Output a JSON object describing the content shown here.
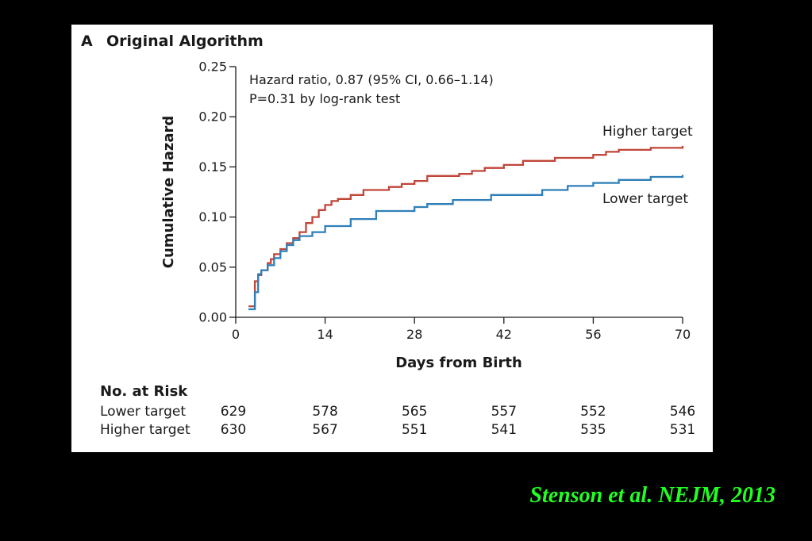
{
  "panel": {
    "letter": "A",
    "title": "Original Algorithm"
  },
  "chart_data": {
    "type": "line",
    "step": true,
    "xlabel": "Days from Birth",
    "ylabel": "Cumulative Hazard",
    "xlim": [
      0,
      70
    ],
    "ylim": [
      0,
      0.25
    ],
    "x_ticks": [
      0,
      14,
      28,
      42,
      56,
      70
    ],
    "y_ticks": [
      0.0,
      0.05,
      0.1,
      0.15,
      0.2,
      0.25
    ],
    "y_tick_labels": [
      "0.00",
      "0.05",
      "0.10",
      "0.15",
      "0.20",
      "0.25"
    ],
    "annotation_lines": [
      "Hazard ratio, 0.87 (95% CI, 0.66–1.14)",
      "P=0.31 by log-rank test"
    ],
    "grid": false,
    "series": [
      {
        "name": "Higher target",
        "color": "#c0463a",
        "x": [
          2,
          3,
          3.5,
          4,
          5,
          5.5,
          6,
          7,
          8,
          9,
          10,
          11,
          12,
          13,
          14,
          15,
          16,
          18,
          20,
          24,
          26,
          28,
          30,
          35,
          37,
          39,
          42,
          45,
          50,
          56,
          58,
          60,
          65,
          70
        ],
        "y": [
          0.011,
          0.036,
          0.042,
          0.047,
          0.054,
          0.058,
          0.063,
          0.068,
          0.074,
          0.079,
          0.085,
          0.094,
          0.1,
          0.107,
          0.112,
          0.116,
          0.118,
          0.122,
          0.127,
          0.13,
          0.133,
          0.136,
          0.141,
          0.143,
          0.146,
          0.149,
          0.152,
          0.156,
          0.159,
          0.162,
          0.165,
          0.167,
          0.169,
          0.171
        ]
      },
      {
        "name": "Lower target",
        "color": "#2e7fb8",
        "x": [
          2,
          3,
          3.5,
          4,
          5,
          6,
          7,
          8,
          9,
          10,
          12,
          14,
          18,
          22,
          28,
          30,
          34,
          40,
          48,
          52,
          56,
          60,
          65,
          70
        ],
        "y": [
          0.008,
          0.025,
          0.043,
          0.047,
          0.052,
          0.059,
          0.066,
          0.072,
          0.077,
          0.081,
          0.085,
          0.091,
          0.098,
          0.106,
          0.11,
          0.113,
          0.117,
          0.122,
          0.127,
          0.131,
          0.134,
          0.137,
          0.14,
          0.142
        ]
      }
    ]
  },
  "risk_table": {
    "title": "No. at Risk",
    "rows": [
      {
        "label": "Lower target",
        "values": [
          "629",
          "578",
          "565",
          "557",
          "552",
          "546"
        ]
      },
      {
        "label": "Higher target",
        "values": [
          "630",
          "567",
          "551",
          "541",
          "535",
          "531"
        ]
      }
    ]
  },
  "citation": "Stenson et al. NEJM, 2013"
}
